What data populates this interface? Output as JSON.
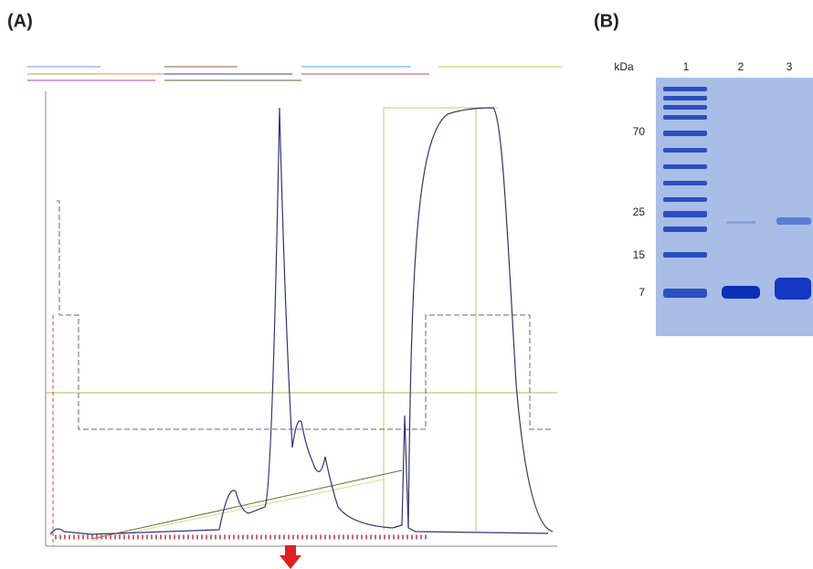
{
  "panels": [
    {
      "label": "(A)"
    },
    {
      "label": "(B)",
      "unit_label": "kDa",
      "lanes": [
        1,
        2,
        3
      ],
      "markers": [
        70,
        25,
        15,
        7
      ]
    }
  ]
}
